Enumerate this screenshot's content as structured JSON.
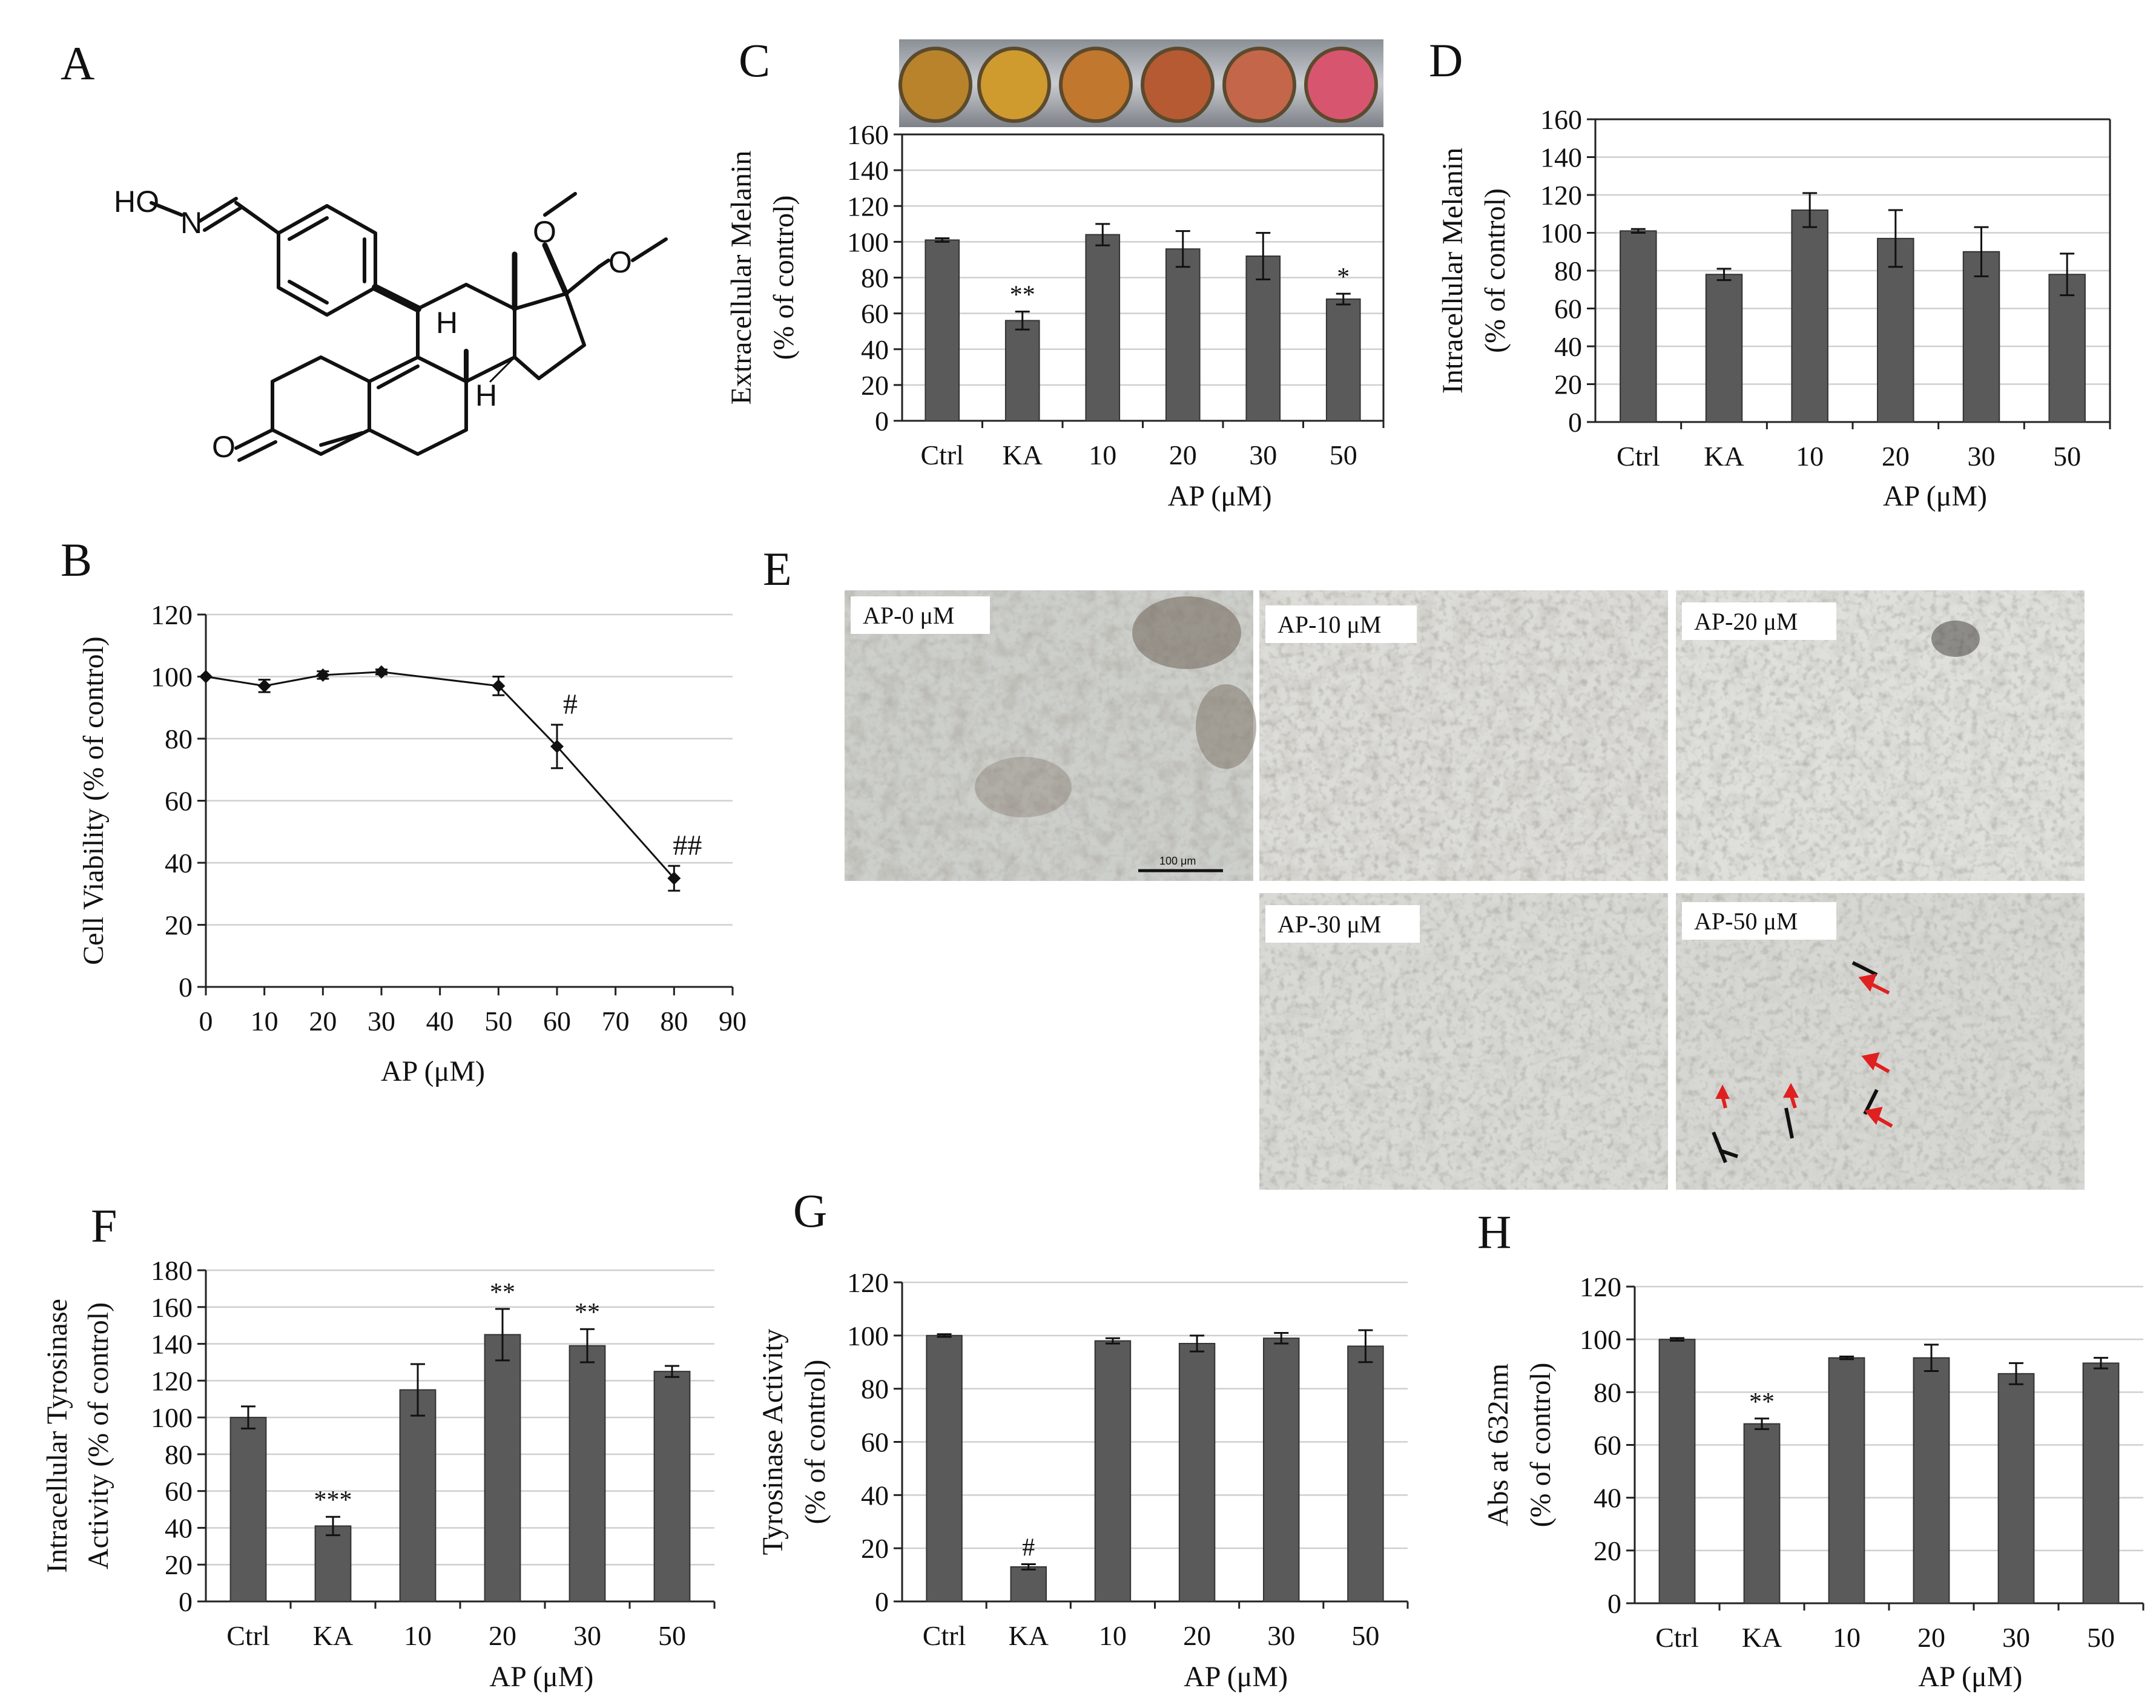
{
  "panels": {
    "A": "A",
    "B": "B",
    "C": "C",
    "D": "D",
    "E": "E",
    "F": "F",
    "G": "G",
    "H": "H"
  },
  "molecule": {
    "hydroxyl": "HO",
    "nitrogen": "N",
    "oxygen": "O",
    "hydrogen": "H"
  },
  "micro": {
    "labels": [
      "AP-0 μM",
      "AP-10 μM",
      "AP-20 μM",
      "AP-30 μM",
      "AP-50 μM"
    ],
    "scalebar": "100 μm"
  },
  "chart_data": [
    {
      "id": "B",
      "type": "line",
      "title": "",
      "x": [
        0,
        10,
        20,
        30,
        50,
        60,
        80
      ],
      "values": [
        100,
        97,
        100.5,
        101.5,
        97,
        77.5,
        35
      ],
      "errors": [
        0,
        2,
        1.2,
        0.8,
        3,
        7,
        4
      ],
      "annotations": [
        "",
        "",
        "",
        "",
        "",
        "#",
        "##"
      ],
      "xlim": [
        0,
        90
      ],
      "ylim": [
        0,
        120
      ],
      "xticks": [
        "0",
        "10",
        "20",
        "30",
        "40",
        "50",
        "60",
        "70",
        "80",
        "90"
      ],
      "yticks": [
        "0",
        "20",
        "40",
        "60",
        "80",
        "100",
        "120"
      ],
      "xlabel": "AP (μM)",
      "ylabel": "Cell Viability (%  of control)"
    },
    {
      "id": "C",
      "type": "bar",
      "categories": [
        "Ctrl",
        "KA",
        "10",
        "20",
        "30",
        "50"
      ],
      "values": [
        101,
        56,
        104,
        96,
        92,
        68
      ],
      "errors": [
        1,
        5,
        6,
        10,
        13,
        3
      ],
      "annotations": [
        "",
        "**",
        "",
        "",
        "",
        "*"
      ],
      "ylim": [
        0,
        160
      ],
      "yticks": [
        "0",
        "20",
        "40",
        "60",
        "80",
        "100",
        "120",
        "140",
        "160"
      ],
      "xlabel": "AP (μM)",
      "ylabel": "Extracellular Melanin",
      "ylabel2": "(% of control)"
    },
    {
      "id": "D",
      "type": "bar",
      "categories": [
        "Ctrl",
        "KA",
        "10",
        "20",
        "30",
        "50"
      ],
      "values": [
        101,
        78,
        112,
        97,
        90,
        78
      ],
      "errors": [
        1,
        3,
        9,
        15,
        13,
        11
      ],
      "annotations": [
        "",
        "",
        "",
        "",
        "",
        ""
      ],
      "ylim": [
        0,
        160
      ],
      "yticks": [
        "0",
        "20",
        "40",
        "60",
        "80",
        "100",
        "120",
        "140",
        "160"
      ],
      "xlabel": "AP (μM)",
      "ylabel": "Intracellular Melanin",
      "ylabel2": "(% of control)"
    },
    {
      "id": "F",
      "type": "bar",
      "categories": [
        "Ctrl",
        "KA",
        "10",
        "20",
        "30",
        "50"
      ],
      "values": [
        100,
        41,
        115,
        145,
        139,
        125
      ],
      "errors": [
        6,
        5,
        14,
        14,
        9,
        3
      ],
      "annotations": [
        "",
        "***",
        "",
        "**",
        "**",
        ""
      ],
      "ylim": [
        0,
        180
      ],
      "yticks": [
        "0",
        "20",
        "40",
        "60",
        "80",
        "100",
        "120",
        "140",
        "160",
        "180"
      ],
      "xlabel": "AP (μM)",
      "ylabel": "Intracellular  Tyrosinase",
      "ylabel2": "Activity (% of control)"
    },
    {
      "id": "G",
      "type": "bar",
      "categories": [
        "Ctrl",
        "KA",
        "10",
        "20",
        "30",
        "50"
      ],
      "values": [
        100,
        13,
        98,
        97,
        99,
        96
      ],
      "errors": [
        0.5,
        1,
        1,
        3,
        2,
        6
      ],
      "annotations": [
        "",
        "#",
        "",
        "",
        "",
        ""
      ],
      "ylim": [
        0,
        120
      ],
      "yticks": [
        "0",
        "20",
        "40",
        "60",
        "80",
        "100",
        "120"
      ],
      "xlabel": "AP (μM)",
      "ylabel": "Tyrosinase Activity",
      "ylabel2": "(% of control)"
    },
    {
      "id": "H",
      "type": "bar",
      "categories": [
        "Ctrl",
        "KA",
        "10",
        "20",
        "30",
        "50"
      ],
      "values": [
        100,
        68,
        93,
        93,
        87,
        91
      ],
      "errors": [
        0.5,
        2,
        0.5,
        5,
        4,
        2
      ],
      "annotations": [
        "",
        "**",
        "",
        "",
        "",
        ""
      ],
      "ylim": [
        0,
        120
      ],
      "yticks": [
        "0",
        "20",
        "40",
        "60",
        "80",
        "100",
        "120"
      ],
      "xlabel": "AP (μM)",
      "ylabel": "Abs at 632nm",
      "ylabel2": "(% of control)"
    }
  ],
  "colors": {
    "bar": "#5a5a5a",
    "grid": "#cfcfcf",
    "axis": "#222222",
    "arrow": "#e02020",
    "text": "#111111"
  }
}
